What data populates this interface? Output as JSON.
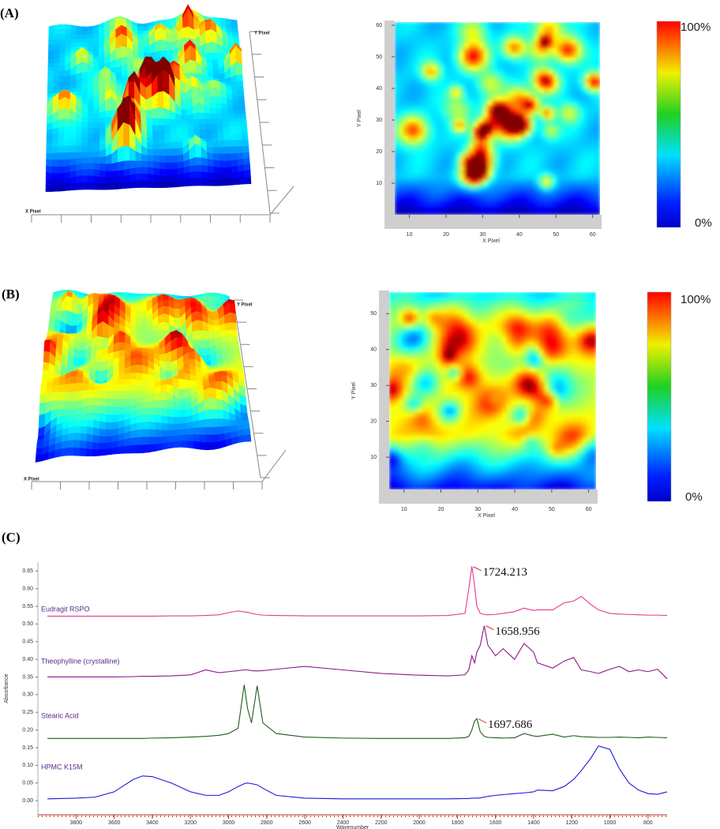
{
  "panels": [
    {
      "label": "(A)",
      "surface": {
        "x_label": "X Pixel",
        "y_label": "Y Pixel"
      },
      "map": {
        "x_label": "X Pixel",
        "y_label": "Y Pixel",
        "xlim": [
          6,
          62
        ],
        "ylim": [
          0,
          61
        ],
        "xticks": [
          10,
          20,
          30,
          40,
          50,
          60
        ],
        "yticks": [
          10,
          20,
          30,
          40,
          50,
          60
        ]
      },
      "colorbar": {
        "max_label": "100%",
        "min_label": "0%"
      }
    },
    {
      "label": "(B)",
      "surface": {
        "x_label": "X Pixel",
        "y_label": "Y Pixel"
      },
      "map": {
        "x_label": "X Pixel",
        "y_label": "Y Pixel",
        "xlim": [
          6,
          62
        ],
        "ylim": [
          1,
          56
        ],
        "xticks": [
          10,
          20,
          30,
          40,
          50,
          60
        ],
        "yticks": [
          10,
          20,
          30,
          40,
          50
        ]
      },
      "colorbar": {
        "max_label": "100%",
        "min_label": "0%"
      }
    }
  ],
  "chart_data": {
    "type": "line",
    "panel_label": "(C)",
    "x_label": "Wavenumber",
    "y_label": "Absorbance",
    "xlim": [
      4000,
      700
    ],
    "ylim": [
      -0.04,
      0.675
    ],
    "xticks": [
      3800,
      3600,
      3400,
      3200,
      3000,
      2800,
      2600,
      2400,
      2200,
      2000,
      1800,
      1600,
      1400,
      1200,
      1000,
      800
    ],
    "yticks": [
      {
        "value": 0,
        "label": "0.00"
      },
      0.05,
      {
        "value": 0.1,
        "label": "0.10"
      },
      0.15,
      {
        "value": 0.2,
        "label": "0.20"
      },
      0.25,
      {
        "value": 0.3,
        "label": "0.30"
      },
      0.35,
      {
        "value": 0.4,
        "label": "0.40"
      },
      0.45,
      {
        "value": 0.5,
        "label": "0.50"
      },
      0.55,
      {
        "value": 0.6,
        "label": "0.60"
      },
      0.65
    ],
    "x": [
      3950,
      3800,
      3700,
      3600,
      3500,
      3450,
      3400,
      3300,
      3200,
      3120,
      3050,
      3000,
      2950,
      2918,
      2900,
      2880,
      2850,
      2820,
      2750,
      2600,
      2400,
      2200,
      2000,
      1850,
      1760,
      1740,
      1724,
      1710,
      1698,
      1680,
      1659,
      1640,
      1600,
      1560,
      1500,
      1450,
      1400,
      1380,
      1300,
      1240,
      1190,
      1150,
      1100,
      1060,
      1000,
      950,
      900,
      850,
      800,
      750,
      700
    ],
    "series": [
      {
        "name": "Eudragit RSPO",
        "color": "#e6388f",
        "peak_label": "1724.213",
        "values": [
          0.522,
          0.522,
          0.522,
          0.522,
          0.522,
          0.522,
          0.522,
          0.523,
          0.523,
          0.524,
          0.526,
          0.532,
          0.537,
          0.534,
          0.533,
          0.53,
          0.527,
          0.525,
          0.524,
          0.523,
          0.523,
          0.523,
          0.523,
          0.524,
          0.53,
          0.6,
          0.663,
          0.61,
          0.55,
          0.53,
          0.527,
          0.526,
          0.527,
          0.53,
          0.535,
          0.545,
          0.538,
          0.54,
          0.54,
          0.56,
          0.565,
          0.578,
          0.555,
          0.54,
          0.53,
          0.528,
          0.527,
          0.526,
          0.525,
          0.525,
          0.524
        ]
      },
      {
        "name": "Theophylline (crystalline)",
        "color": "#8b1a8b",
        "peak_label": "1658.956",
        "values": [
          0.35,
          0.35,
          0.35,
          0.35,
          0.351,
          0.352,
          0.352,
          0.353,
          0.356,
          0.37,
          0.362,
          0.365,
          0.368,
          0.37,
          0.37,
          0.368,
          0.367,
          0.368,
          0.372,
          0.38,
          0.37,
          0.36,
          0.355,
          0.353,
          0.356,
          0.37,
          0.41,
          0.39,
          0.42,
          0.44,
          0.495,
          0.44,
          0.41,
          0.43,
          0.4,
          0.445,
          0.42,
          0.39,
          0.375,
          0.395,
          0.405,
          0.37,
          0.365,
          0.36,
          0.372,
          0.38,
          0.365,
          0.37,
          0.365,
          0.372,
          0.345
        ]
      },
      {
        "name": "Stearic Acid",
        "color": "#1f5c1f",
        "peak_label": "1697.686",
        "values": [
          0.176,
          0.176,
          0.176,
          0.176,
          0.176,
          0.176,
          0.177,
          0.178,
          0.18,
          0.182,
          0.185,
          0.19,
          0.205,
          0.328,
          0.26,
          0.22,
          0.325,
          0.22,
          0.19,
          0.18,
          0.177,
          0.176,
          0.176,
          0.176,
          0.178,
          0.182,
          0.2,
          0.225,
          0.232,
          0.195,
          0.182,
          0.179,
          0.178,
          0.177,
          0.178,
          0.19,
          0.183,
          0.182,
          0.188,
          0.18,
          0.184,
          0.181,
          0.18,
          0.179,
          0.179,
          0.18,
          0.179,
          0.178,
          0.18,
          0.179,
          0.178
        ]
      },
      {
        "name": "HPMC K15M",
        "color": "#1a1adb",
        "values": [
          0.005,
          0.007,
          0.01,
          0.025,
          0.06,
          0.07,
          0.068,
          0.05,
          0.025,
          0.015,
          0.015,
          0.025,
          0.04,
          0.048,
          0.05,
          0.048,
          0.045,
          0.035,
          0.015,
          0.007,
          0.005,
          0.005,
          0.005,
          0.005,
          0.006,
          0.006,
          0.007,
          0.007,
          0.007,
          0.008,
          0.01,
          0.012,
          0.015,
          0.017,
          0.02,
          0.022,
          0.025,
          0.03,
          0.028,
          0.04,
          0.06,
          0.085,
          0.12,
          0.155,
          0.145,
          0.09,
          0.05,
          0.03,
          0.02,
          0.018,
          0.025
        ]
      }
    ]
  }
}
